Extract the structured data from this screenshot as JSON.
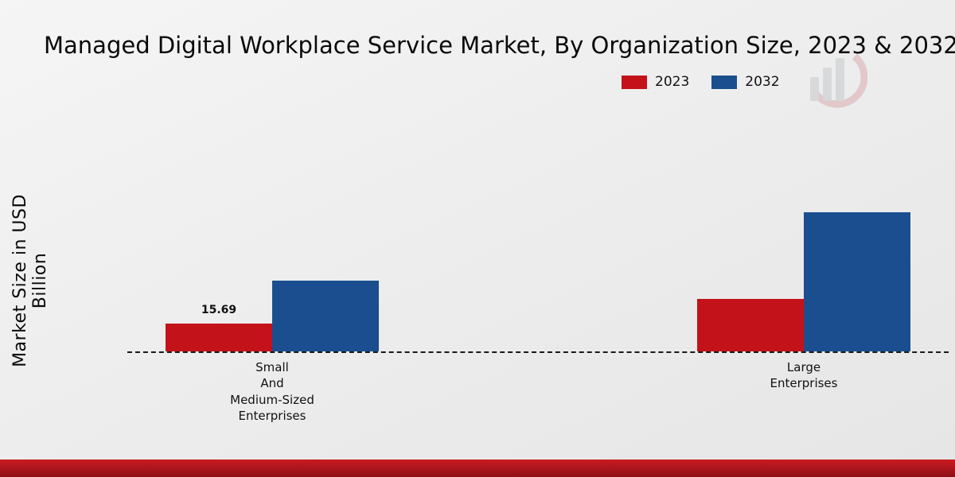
{
  "title": "Managed Digital Workplace Service Market, By Organization Size, 2023 & 2032",
  "ylabel": "Market Size in USD Billion",
  "legend": [
    {
      "label": "2023",
      "color": "#c3121a"
    },
    {
      "label": "2032",
      "color": "#1a4e8f"
    }
  ],
  "footer": {
    "band_color_top": "#cc1a22",
    "band_color_bottom": "#8c1016"
  },
  "watermark": {
    "name": "market-research-logo"
  },
  "chart_data": {
    "type": "bar",
    "categories": [
      "Small And Medium-Sized Enterprises",
      "Large Enterprises"
    ],
    "category_lines": [
      [
        "Small",
        "And",
        "Medium-Sized",
        "Enterprises"
      ],
      [
        "Large",
        "Enterprises"
      ]
    ],
    "series": [
      {
        "name": "2023",
        "color": "#c3121a",
        "values": [
          15.69,
          29.6
        ]
      },
      {
        "name": "2032",
        "color": "#1a4e8f",
        "values": [
          40.0,
          78.5
        ]
      }
    ],
    "value_labels": [
      {
        "series": 0,
        "category": 0,
        "text": "15.69"
      }
    ],
    "xlabel": "",
    "ylim": [
      0,
      85
    ],
    "grid": false,
    "legend_position": "top-right",
    "baseline_style": "dashed"
  }
}
